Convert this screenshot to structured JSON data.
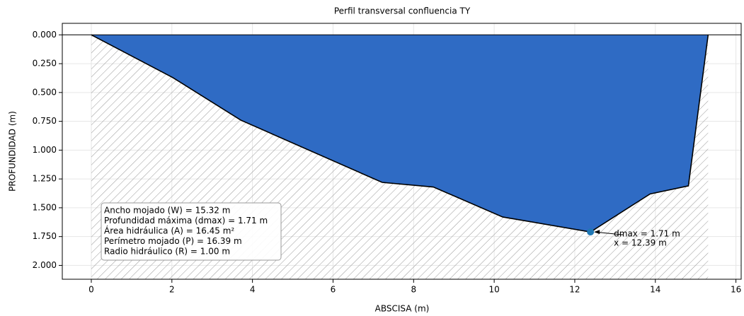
{
  "chart_data": {
    "type": "profile",
    "title": "Perfil transversal confluencia TY",
    "x_label": "ABSCISA (m)",
    "y_label": "PROFUNDIDAD (m)",
    "x": [
      0,
      2.02,
      3.71,
      7.22,
      8.49,
      10.21,
      12.39,
      13.87,
      14.82,
      15.31
    ],
    "series": [
      {
        "name": "Profundidad",
        "color": "#2f6bc4",
        "values": [
          0,
          0.37,
          0.74,
          1.28,
          1.32,
          1.58,
          1.71,
          1.38,
          1.31,
          0
        ]
      }
    ],
    "xlim": [
      -0.72,
      16.13
    ],
    "ylim": [
      -0.1,
      2.12
    ],
    "y_inverted": true,
    "xticks": [
      0,
      2,
      4,
      6,
      8,
      10,
      12,
      14,
      16
    ],
    "yticks": [
      {
        "value": 0,
        "label": "0.000"
      },
      {
        "value": 0.25,
        "label": "0.250"
      },
      {
        "value": 0.5,
        "label": "0.500"
      },
      {
        "value": 0.75,
        "label": "0.750"
      },
      {
        "value": 1,
        "label": "1.000"
      },
      {
        "value": 1.25,
        "label": "1.250"
      },
      {
        "value": 1.5,
        "label": "1.500"
      },
      {
        "value": 1.75,
        "label": "1.750"
      },
      {
        "value": 2,
        "label": "2.000"
      }
    ],
    "grid": true,
    "info_box": [
      "Ancho mojado (W) = 15.32 m",
      "Profundidad máxima (dmax) = 1.71 m",
      "Área hidráulica (A) = 16.45 m²",
      "Perímetro mojado (P) = 16.39 m",
      "Radio hidráulico (R) = 1.00 m"
    ],
    "max_point": {
      "x": 12.39,
      "y": 1.71,
      "color": "#1f77b4",
      "labels": [
        "dmax = 1.71 m",
        "x = 12.39 m"
      ]
    }
  }
}
